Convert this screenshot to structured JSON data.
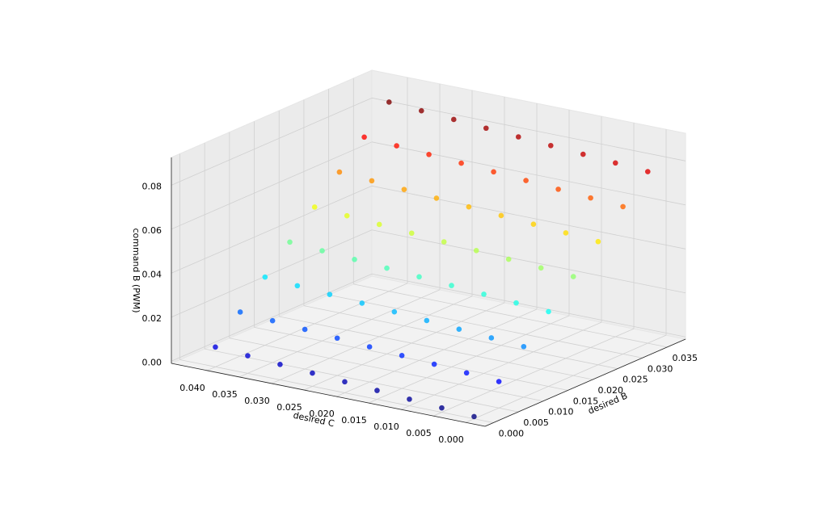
{
  "chart_data": {
    "type": "scatter3d",
    "colormap": "jet",
    "xlabel": "desired B",
    "ylabel": "desired C",
    "zlabel": "command B (PWM)",
    "xlim": [
      -0.0017,
      0.0387
    ],
    "ylim": [
      -0.003,
      0.0455
    ],
    "zlim": [
      -0.001,
      0.0926
    ],
    "xticks": [
      {
        "value": 0,
        "label": "0.000"
      },
      {
        "value": 0.005,
        "label": "0.005"
      },
      {
        "value": 0.01,
        "label": "0.010"
      },
      {
        "value": 0.015,
        "label": "0.015"
      },
      {
        "value": 0.02,
        "label": "0.020"
      },
      {
        "value": 0.025,
        "label": "0.025"
      },
      {
        "value": 0.03,
        "label": "0.030"
      },
      {
        "value": 0.035,
        "label": "0.035"
      }
    ],
    "yticks": [
      {
        "value": 0,
        "label": "0.000"
      },
      {
        "value": 0.005,
        "label": "0.005"
      },
      {
        "value": 0.01,
        "label": "0.010"
      },
      {
        "value": 0.015,
        "label": "0.015"
      },
      {
        "value": 0.02,
        "label": "0.020"
      },
      {
        "value": 0.025,
        "label": "0.025"
      },
      {
        "value": 0.03,
        "label": "0.030"
      },
      {
        "value": 0.035,
        "label": "0.035"
      },
      {
        "value": 0.04,
        "label": "0.040"
      }
    ],
    "zticks": [
      {
        "value": 0,
        "label": "0.00"
      },
      {
        "value": 0.02,
        "label": "0.02"
      },
      {
        "value": 0.04,
        "label": "0.04"
      },
      {
        "value": 0.06,
        "label": "0.06"
      },
      {
        "value": 0.08,
        "label": "0.08"
      }
    ],
    "x": [
      0,
      0,
      0,
      0,
      0,
      0,
      0,
      0,
      0,
      0.005,
      0.005,
      0.005,
      0.005,
      0.005,
      0.005,
      0.005,
      0.005,
      0.005,
      0.01,
      0.01,
      0.01,
      0.01,
      0.01,
      0.01,
      0.01,
      0.01,
      0.01,
      0.015,
      0.015,
      0.015,
      0.015,
      0.015,
      0.015,
      0.015,
      0.015,
      0.015,
      0.02,
      0.02,
      0.02,
      0.02,
      0.02,
      0.02,
      0.02,
      0.02,
      0.02,
      0.025,
      0.025,
      0.025,
      0.025,
      0.025,
      0.025,
      0.025,
      0.025,
      0.025,
      0.03,
      0.03,
      0.03,
      0.03,
      0.03,
      0.03,
      0.03,
      0.03,
      0.03,
      0.035,
      0.035,
      0.035,
      0.035,
      0.035,
      0.035,
      0.035,
      0.035,
      0.035
    ],
    "y": [
      0,
      0.005,
      0.01,
      0.015,
      0.02,
      0.025,
      0.03,
      0.035,
      0.04,
      0,
      0.005,
      0.01,
      0.015,
      0.02,
      0.025,
      0.03,
      0.035,
      0.04,
      0,
      0.005,
      0.01,
      0.015,
      0.02,
      0.025,
      0.03,
      0.035,
      0.04,
      0,
      0.005,
      0.01,
      0.015,
      0.02,
      0.025,
      0.03,
      0.035,
      0.04,
      0,
      0.005,
      0.01,
      0.015,
      0.02,
      0.025,
      0.03,
      0.035,
      0.04,
      0,
      0.005,
      0.01,
      0.015,
      0.02,
      0.025,
      0.03,
      0.035,
      0.04,
      0,
      0.005,
      0.01,
      0.015,
      0.02,
      0.025,
      0.03,
      0.035,
      0.04,
      0,
      0.005,
      0.01,
      0.015,
      0.02,
      0.025,
      0.03,
      0.035,
      0.04
    ],
    "z": [
      0,
      0.001,
      0.002,
      0.003,
      0.004,
      0.005,
      0.006,
      0.007,
      0.008,
      0.011,
      0.012,
      0.013,
      0.014,
      0.015,
      0.016,
      0.017,
      0.018,
      0.019,
      0.022,
      0.023,
      0.024,
      0.025,
      0.026,
      0.027,
      0.028,
      0.029,
      0.03,
      0.033,
      0.034,
      0.035,
      0.036,
      0.037,
      0.038,
      0.039,
      0.04,
      0.041,
      0.044,
      0.045,
      0.046,
      0.047,
      0.048,
      0.049,
      0.05,
      0.051,
      0.052,
      0.055,
      0.056,
      0.057,
      0.058,
      0.059,
      0.06,
      0.061,
      0.062,
      0.063,
      0.066,
      0.067,
      0.068,
      0.069,
      0.07,
      0.071,
      0.072,
      0.073,
      0.074,
      0.077,
      0.078,
      0.079,
      0.08,
      0.081,
      0.082,
      0.083,
      0.084,
      0.085
    ]
  }
}
